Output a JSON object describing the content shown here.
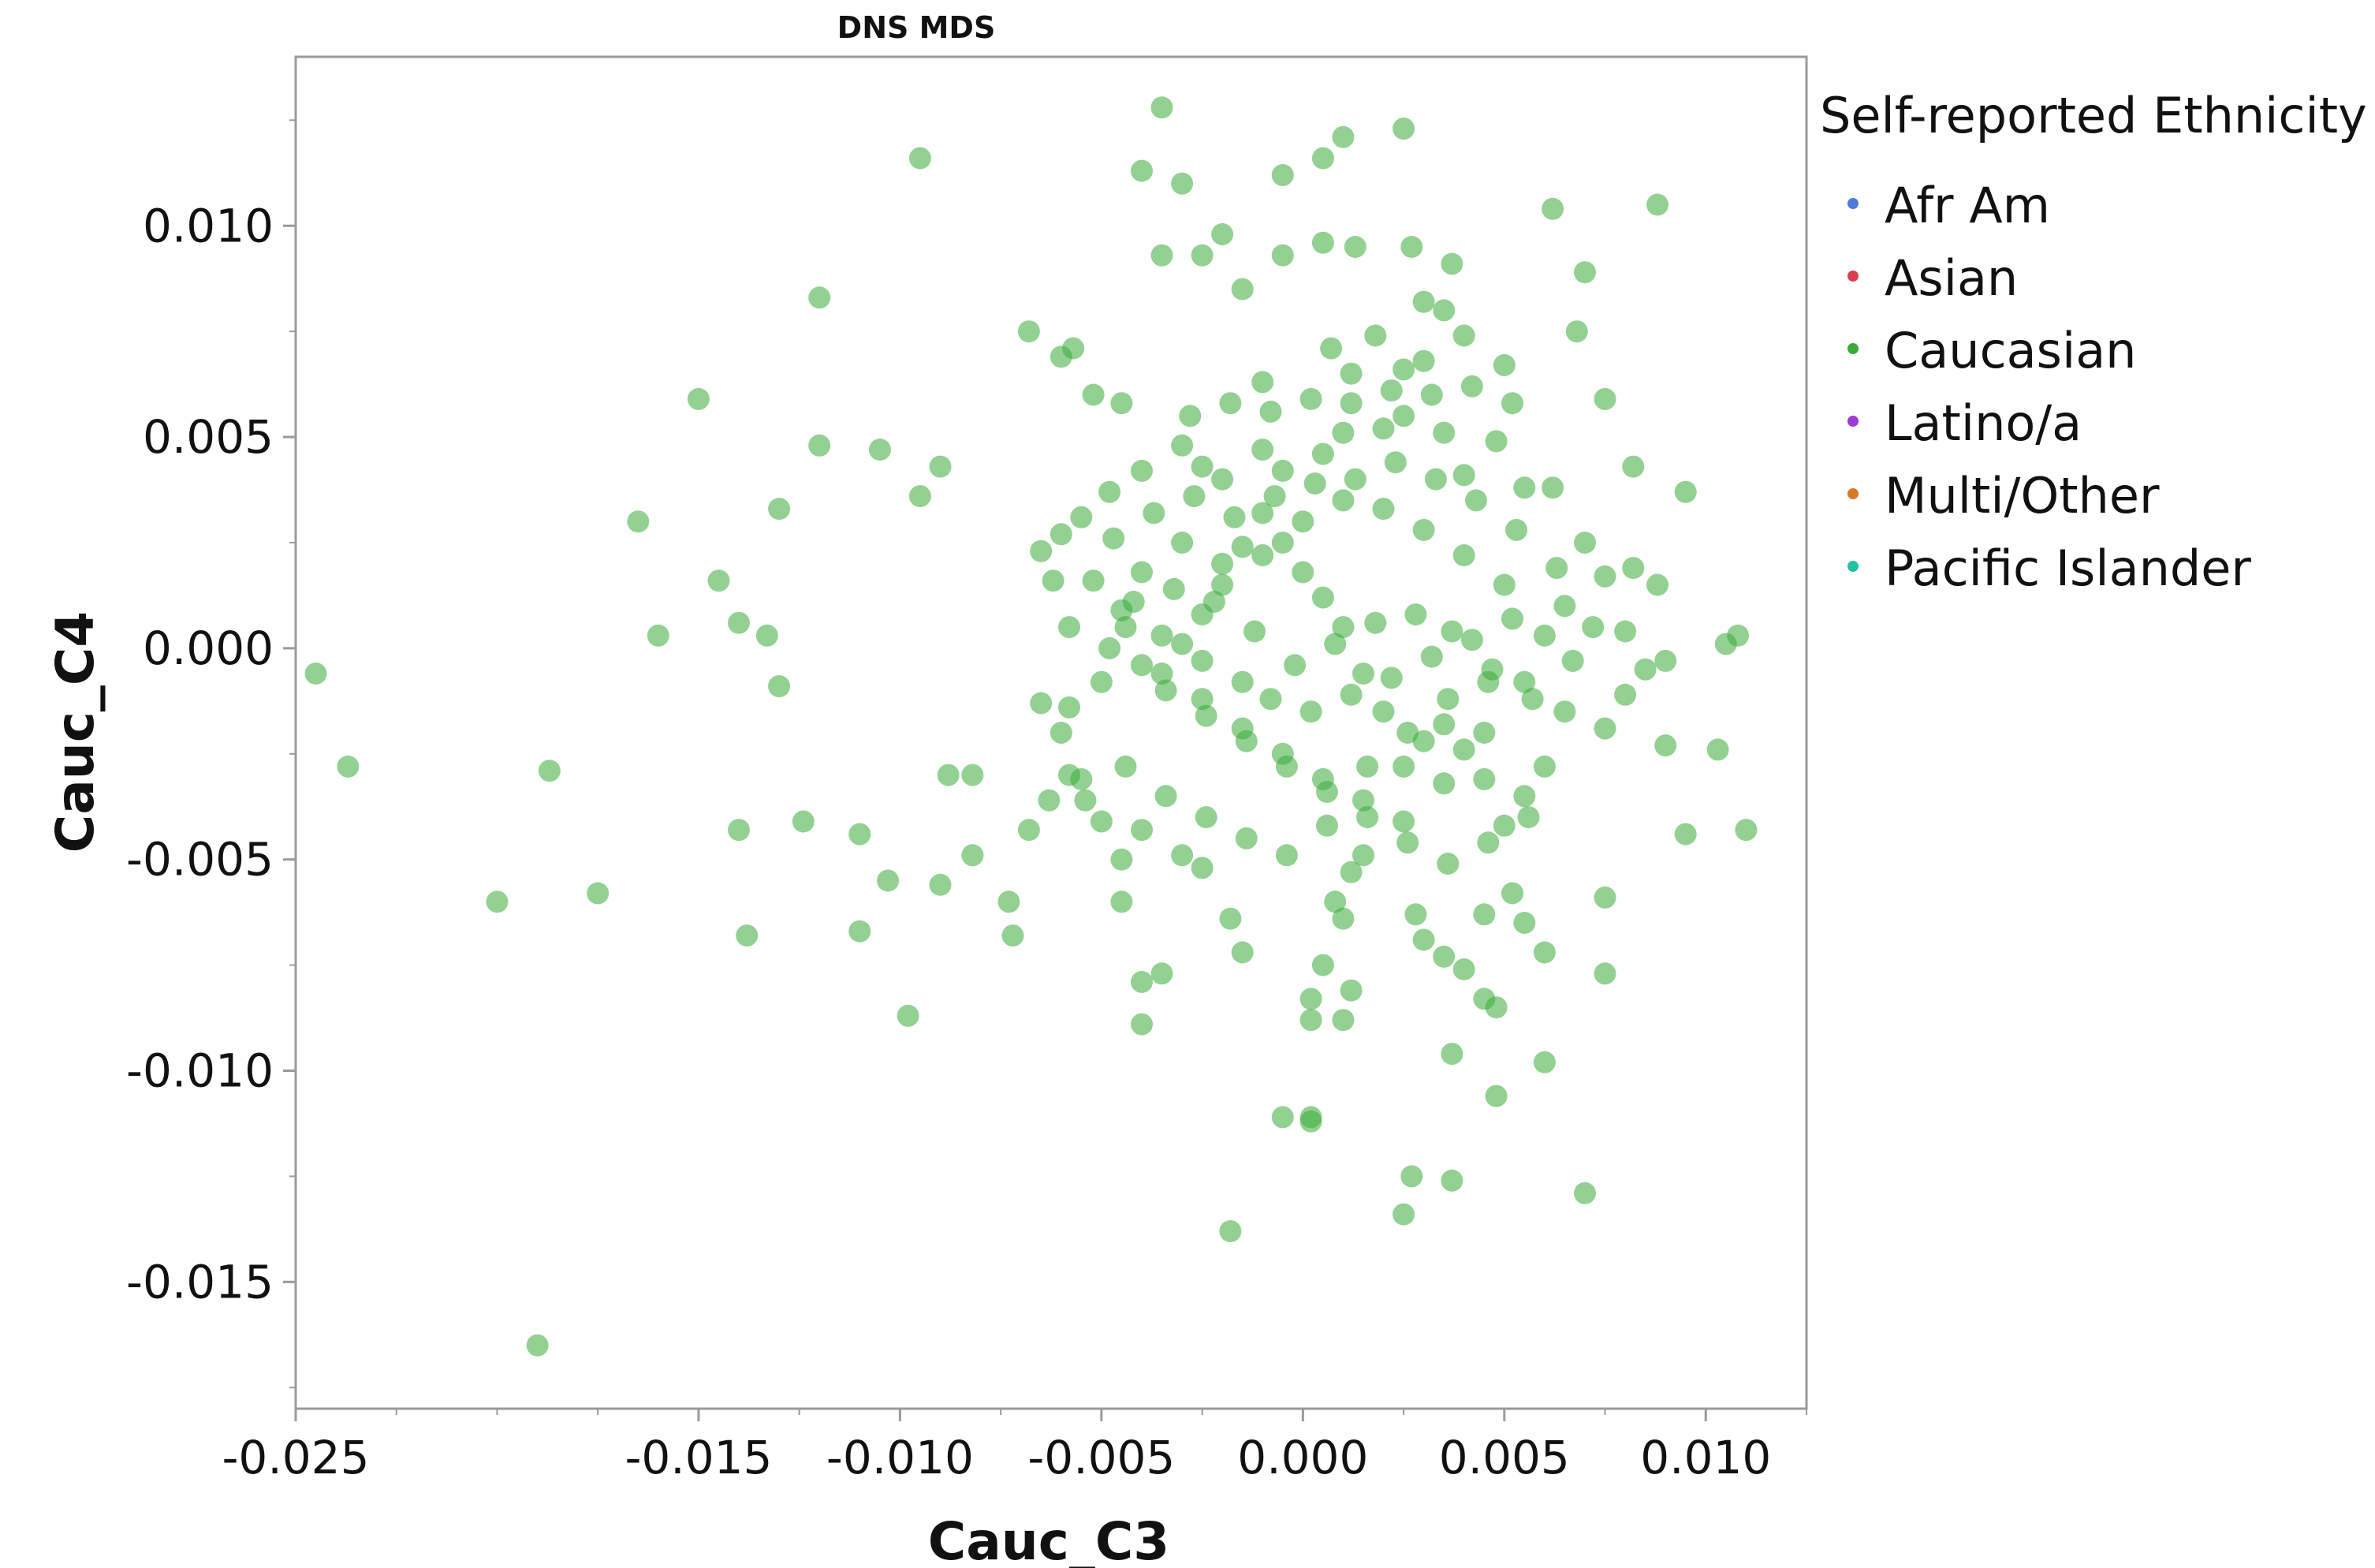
{
  "chart_data": {
    "type": "scatter",
    "title": "DNS MDS",
    "xlabel": "Cauc_C3",
    "ylabel": "Cauc_C4",
    "xlim": [
      -0.025,
      0.0125
    ],
    "ylim": [
      -0.018,
      0.014
    ],
    "xticks": [
      -0.025,
      -0.015,
      -0.01,
      -0.005,
      0.0,
      0.005,
      0.01
    ],
    "xtick_labels": [
      "-0.025",
      "-0.015",
      "-0.010",
      "-0.005",
      "0.000",
      "0.005",
      "0.010"
    ],
    "xminor": [
      -0.025,
      -0.0225,
      -0.02,
      -0.0175,
      -0.015,
      -0.0125,
      -0.01,
      -0.0075,
      -0.005,
      -0.0025,
      0.0,
      0.0025,
      0.005,
      0.0075,
      0.01,
      0.0125
    ],
    "yticks": [
      0.01,
      0.005,
      0.0,
      -0.005,
      -0.01,
      -0.015
    ],
    "ytick_labels": [
      "0.010",
      "0.005",
      "0.000",
      "-0.005",
      "-0.010",
      "-0.015"
    ],
    "yminor": [
      0.0125,
      0.01,
      0.0075,
      0.005,
      0.0025,
      0.0,
      -0.0025,
      -0.005,
      -0.0075,
      -0.01,
      -0.0125,
      -0.015,
      -0.0175
    ],
    "grid": false,
    "legend": {
      "title": "Self-reported Ethnicity",
      "position": "right",
      "entries": [
        {
          "label": "Afr Am",
          "color": "#4f7ad9"
        },
        {
          "label": "Asian",
          "color": "#d9404f"
        },
        {
          "label": "Caucasian",
          "color": "#3aab3a"
        },
        {
          "label": "Latino/a",
          "color": "#9d3cd6"
        },
        {
          "label": "Multi/Other",
          "color": "#d77a27"
        },
        {
          "label": "Pacific Islander",
          "color": "#21c2a1"
        }
      ]
    },
    "series": [
      {
        "name": "Caucasian",
        "color": "#3aab3a",
        "points": [
          [
            -0.0035,
            0.0128
          ],
          [
            -0.0095,
            0.0116
          ],
          [
            -0.004,
            0.0113
          ],
          [
            -0.003,
            0.011
          ],
          [
            0.001,
            0.0121
          ],
          [
            0.0005,
            0.0116
          ],
          [
            0.0025,
            0.0123
          ],
          [
            -0.0005,
            0.0112
          ],
          [
            0.0062,
            0.0104
          ],
          [
            0.0088,
            0.0105
          ],
          [
            -0.0035,
            0.0093
          ],
          [
            -0.0025,
            0.0093
          ],
          [
            -0.002,
            0.0098
          ],
          [
            -0.0015,
            0.0085
          ],
          [
            -0.0005,
            0.0093
          ],
          [
            0.0005,
            0.0096
          ],
          [
            0.0013,
            0.0095
          ],
          [
            0.0027,
            0.0095
          ],
          [
            0.0037,
            0.0091
          ],
          [
            0.007,
            0.0089
          ],
          [
            -0.012,
            0.0083
          ],
          [
            -0.0068,
            0.0075
          ],
          [
            -0.006,
            0.0069
          ],
          [
            -0.0057,
            0.0071
          ],
          [
            0.0007,
            0.0071
          ],
          [
            0.0018,
            0.0074
          ],
          [
            0.003,
            0.0082
          ],
          [
            0.0035,
            0.008
          ],
          [
            0.004,
            0.0074
          ],
          [
            0.0068,
            0.0075
          ],
          [
            -0.015,
            0.0059
          ],
          [
            -0.012,
            0.0048
          ],
          [
            -0.0105,
            0.0047
          ],
          [
            -0.009,
            0.0043
          ],
          [
            -0.0095,
            0.0036
          ],
          [
            -0.0052,
            0.006
          ],
          [
            -0.0045,
            0.0058
          ],
          [
            -0.001,
            0.0063
          ],
          [
            0.0012,
            0.0065
          ],
          [
            0.0025,
            0.0066
          ],
          [
            0.003,
            0.0068
          ],
          [
            0.005,
            0.0067
          ],
          [
            0.0075,
            0.0059
          ],
          [
            0.0082,
            0.0043
          ],
          [
            0.0095,
            0.0037
          ],
          [
            -0.0165,
            0.003
          ],
          [
            -0.0145,
            0.0016
          ],
          [
            -0.013,
            0.0033
          ],
          [
            -0.016,
            0.0003
          ],
          [
            -0.014,
            0.0006
          ],
          [
            -0.0133,
            0.0003
          ],
          [
            -0.013,
            -0.0009
          ],
          [
            -0.0245,
            -0.0006
          ],
          [
            -0.0237,
            -0.0028
          ],
          [
            -0.0187,
            -0.0029
          ],
          [
            -0.014,
            -0.0043
          ],
          [
            -0.0124,
            -0.0041
          ],
          [
            -0.011,
            -0.0044
          ],
          [
            -0.0103,
            -0.0055
          ],
          [
            -0.011,
            -0.0067
          ],
          [
            -0.0138,
            -0.0068
          ],
          [
            -0.0175,
            -0.0058
          ],
          [
            -0.02,
            -0.006
          ],
          [
            -0.019,
            -0.0165
          ],
          [
            -0.0098,
            -0.0087
          ],
          [
            -0.0088,
            -0.003
          ],
          [
            -0.0082,
            -0.003
          ],
          [
            -0.009,
            -0.0056
          ],
          [
            -0.0082,
            -0.0049
          ],
          [
            -0.0073,
            -0.006
          ],
          [
            -0.0072,
            -0.0068
          ],
          [
            -0.0068,
            -0.0043
          ],
          [
            -0.0063,
            -0.0036
          ],
          [
            -0.0058,
            -0.003
          ],
          [
            -0.0045,
            -0.006
          ],
          [
            -0.004,
            -0.0079
          ],
          [
            -0.0035,
            -0.0077
          ],
          [
            -0.004,
            -0.0089
          ],
          [
            -0.0018,
            -0.0138
          ],
          [
            -0.0005,
            -0.0111
          ],
          [
            0.0002,
            -0.0111
          ],
          [
            0.0002,
            -0.0112
          ],
          [
            0.0025,
            -0.0134
          ],
          [
            0.0027,
            -0.0125
          ],
          [
            0.0037,
            -0.0126
          ],
          [
            0.007,
            -0.0129
          ],
          [
            0.0048,
            -0.0106
          ],
          [
            0.0037,
            -0.0096
          ],
          [
            0.006,
            -0.0098
          ],
          [
            0.0048,
            -0.0085
          ],
          [
            0.0045,
            -0.0083
          ],
          [
            0.004,
            -0.0076
          ],
          [
            0.0035,
            -0.0073
          ],
          [
            0.0075,
            -0.0077
          ],
          [
            0.0075,
            -0.0059
          ],
          [
            0.006,
            -0.0072
          ],
          [
            0.0055,
            -0.0065
          ],
          [
            0.0052,
            -0.0058
          ],
          [
            0.0045,
            -0.0063
          ],
          [
            0.003,
            -0.0069
          ],
          [
            0.0028,
            -0.0063
          ],
          [
            0.0015,
            -0.0049
          ],
          [
            0.0012,
            -0.0053
          ],
          [
            0.0008,
            -0.006
          ],
          [
            0.001,
            -0.0064
          ],
          [
            0.0005,
            -0.0075
          ],
          [
            0.0002,
            -0.0083
          ],
          [
            0.0002,
            -0.0088
          ],
          [
            0.001,
            -0.0088
          ],
          [
            0.0012,
            -0.0081
          ],
          [
            -0.0018,
            -0.0064
          ],
          [
            -0.0015,
            -0.0072
          ],
          [
            -0.0025,
            -0.0052
          ],
          [
            -0.003,
            -0.0049
          ],
          [
            -0.004,
            -0.0043
          ],
          [
            -0.0045,
            -0.005
          ],
          [
            -0.005,
            -0.0041
          ],
          [
            -0.0055,
            -0.0031
          ],
          [
            -0.006,
            -0.002
          ],
          [
            -0.0065,
            -0.0013
          ],
          [
            -0.0058,
            -0.0014
          ],
          [
            -0.005,
            -0.0008
          ],
          [
            -0.004,
            -0.0004
          ],
          [
            -0.0048,
            0.0
          ],
          [
            -0.0058,
            0.0005
          ],
          [
            -0.0062,
            0.0016
          ],
          [
            -0.0065,
            0.0023
          ],
          [
            -0.006,
            0.0027
          ],
          [
            -0.0055,
            0.0031
          ],
          [
            -0.0048,
            0.0037
          ],
          [
            -0.004,
            0.0042
          ],
          [
            -0.003,
            0.0048
          ],
          [
            -0.0025,
            0.0043
          ],
          [
            -0.002,
            0.004
          ],
          [
            -0.001,
            0.0047
          ],
          [
            -0.0005,
            0.0042
          ],
          [
            0.0005,
            0.0046
          ],
          [
            0.001,
            0.0051
          ],
          [
            0.002,
            0.0052
          ],
          [
            0.0025,
            0.0055
          ],
          [
            0.0035,
            0.0051
          ],
          [
            0.004,
            0.0041
          ],
          [
            0.0048,
            0.0049
          ],
          [
            0.0055,
            0.0038
          ],
          [
            0.0062,
            0.0038
          ],
          [
            0.007,
            0.0025
          ],
          [
            0.0075,
            0.0017
          ],
          [
            0.0082,
            0.0019
          ],
          [
            0.0088,
            0.0015
          ],
          [
            0.008,
            0.0004
          ],
          [
            0.0085,
            -0.0005
          ],
          [
            0.009,
            -0.0003
          ],
          [
            0.0105,
            0.0001
          ],
          [
            0.0108,
            0.0003
          ],
          [
            0.0103,
            -0.0024
          ],
          [
            0.0095,
            -0.0044
          ],
          [
            0.011,
            -0.0043
          ],
          [
            0.009,
            -0.0023
          ],
          [
            0.008,
            -0.0011
          ],
          [
            0.0075,
            -0.0019
          ],
          [
            0.0065,
            -0.0015
          ],
          [
            0.006,
            -0.0028
          ],
          [
            0.0055,
            -0.0035
          ],
          [
            0.005,
            -0.0042
          ],
          [
            0.0045,
            -0.0031
          ],
          [
            0.004,
            -0.0024
          ],
          [
            0.0035,
            -0.0018
          ],
          [
            0.003,
            -0.0022
          ],
          [
            0.0025,
            -0.0028
          ],
          [
            0.002,
            -0.0015
          ],
          [
            0.0015,
            -0.0006
          ],
          [
            0.001,
            0.0005
          ],
          [
            0.0005,
            0.0012
          ],
          [
            0.0,
            0.0018
          ],
          [
            -0.0005,
            0.0025
          ],
          [
            -0.001,
            0.0032
          ],
          [
            -0.0015,
            0.0024
          ],
          [
            -0.002,
            0.0015
          ],
          [
            -0.0025,
            0.0008
          ],
          [
            -0.003,
            0.0001
          ],
          [
            -0.0035,
            -0.0006
          ],
          [
            -0.0025,
            -0.0012
          ],
          [
            -0.0015,
            -0.0019
          ],
          [
            -0.0005,
            -0.0025
          ],
          [
            0.0005,
            -0.0031
          ],
          [
            0.0015,
            -0.0036
          ],
          [
            0.0025,
            -0.0041
          ],
          [
            0.0035,
            -0.0032
          ],
          [
            0.0045,
            -0.002
          ],
          [
            0.0055,
            -0.0008
          ],
          [
            0.006,
            0.0003
          ],
          [
            0.0065,
            0.001
          ],
          [
            0.005,
            0.0015
          ],
          [
            0.004,
            0.0022
          ],
          [
            0.003,
            0.0028
          ],
          [
            0.002,
            0.0033
          ],
          [
            0.001,
            0.0035
          ],
          [
            0.0,
            0.003
          ],
          [
            -0.001,
            0.0022
          ],
          [
            -0.002,
            0.002
          ],
          [
            -0.003,
            0.0025
          ],
          [
            -0.004,
            0.0018
          ],
          [
            -0.0045,
            0.0009
          ],
          [
            -0.0035,
            0.0003
          ],
          [
            -0.0025,
            -0.0003
          ],
          [
            -0.0015,
            -0.0008
          ],
          [
            -0.0008,
            -0.0012
          ],
          [
            0.0002,
            -0.0015
          ],
          [
            0.0012,
            -0.0011
          ],
          [
            0.0022,
            -0.0007
          ],
          [
            0.0032,
            -0.0002
          ],
          [
            0.0042,
            0.0002
          ],
          [
            0.0052,
            0.0007
          ],
          [
            0.0028,
            0.0008
          ],
          [
            0.0018,
            0.0006
          ],
          [
            0.0008,
            0.0001
          ],
          [
            -0.0002,
            -0.0004
          ],
          [
            -0.0012,
            0.0004
          ],
          [
            -0.0022,
            0.0011
          ],
          [
            -0.0032,
            0.0014
          ],
          [
            -0.0042,
            0.0011
          ],
          [
            0.0037,
            0.0004
          ],
          [
            0.0047,
            -0.0005
          ],
          [
            0.0057,
            -0.0012
          ],
          [
            0.0067,
            -0.0003
          ],
          [
            0.0072,
            0.0005
          ],
          [
            0.0063,
            0.0019
          ],
          [
            0.0053,
            0.0028
          ],
          [
            0.0043,
            0.0035
          ],
          [
            0.0033,
            0.004
          ],
          [
            0.0023,
            0.0044
          ],
          [
            0.0013,
            0.004
          ],
          [
            0.0003,
            0.0039
          ],
          [
            -0.0007,
            0.0036
          ],
          [
            -0.0017,
            0.0031
          ],
          [
            -0.0027,
            0.0036
          ],
          [
            -0.0037,
            0.0032
          ],
          [
            -0.0047,
            0.0026
          ],
          [
            -0.0052,
            0.0016
          ],
          [
            -0.0044,
            0.0005
          ],
          [
            -0.0034,
            -0.001
          ],
          [
            -0.0024,
            -0.0016
          ],
          [
            -0.0014,
            -0.0022
          ],
          [
            -0.0004,
            -0.0028
          ],
          [
            0.0006,
            -0.0034
          ],
          [
            0.0016,
            -0.004
          ],
          [
            0.0026,
            -0.0046
          ],
          [
            0.0036,
            -0.0051
          ],
          [
            0.0046,
            -0.0046
          ],
          [
            0.0056,
            -0.004
          ],
          [
            -0.0044,
            -0.0028
          ],
          [
            -0.0054,
            -0.0036
          ],
          [
            -0.0034,
            -0.0035
          ],
          [
            -0.0024,
            -0.004
          ],
          [
            -0.0014,
            -0.0045
          ],
          [
            -0.0004,
            -0.0049
          ],
          [
            0.0006,
            -0.0042
          ],
          [
            0.0016,
            -0.0028
          ],
          [
            0.0026,
            -0.002
          ],
          [
            0.0036,
            -0.0012
          ],
          [
            0.0046,
            -0.0008
          ],
          [
            -0.0028,
            0.0055
          ],
          [
            -0.0018,
            0.0058
          ],
          [
            -0.0008,
            0.0056
          ],
          [
            0.0002,
            0.0059
          ],
          [
            0.0012,
            0.0058
          ],
          [
            0.0022,
            0.0061
          ],
          [
            0.0032,
            0.006
          ],
          [
            0.0042,
            0.0062
          ],
          [
            0.0052,
            0.0058
          ]
        ]
      }
    ]
  }
}
